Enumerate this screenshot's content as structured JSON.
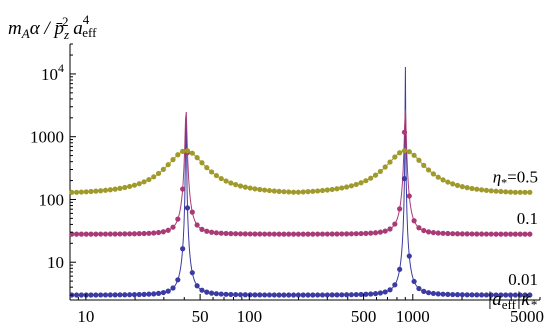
{
  "chart_data": {
    "type": "scatter",
    "title": "",
    "ylabel": "m_A α / p̄_z² a_eff⁴",
    "xlabel": "|a_eff| κ_*",
    "x_scale": "log",
    "y_scale": "log",
    "xlim": [
      8,
      6000
    ],
    "ylim": [
      2.5,
      30000
    ],
    "x_ticks": [
      {
        "value": 10,
        "label": "10"
      },
      {
        "value": 50,
        "label": "50"
      },
      {
        "value": 100,
        "label": "100"
      },
      {
        "value": 500,
        "label": "500"
      },
      {
        "value": 1000,
        "label": "1000"
      },
      {
        "value": 5000,
        "label": "5000"
      }
    ],
    "y_ticks": [
      {
        "value": 10,
        "label": "10"
      },
      {
        "value": 100,
        "label": "100"
      },
      {
        "value": 1000,
        "label": "1000"
      },
      {
        "value": 10000,
        "label": "10^4"
      }
    ],
    "grid": false,
    "resonances": [
      41,
      900
    ],
    "series": [
      {
        "name": "η*=0.01",
        "label_prefix": "",
        "label_value": "0.01",
        "color": "#3b3ba3",
        "baseline": 3,
        "peak": 30000,
        "width": 0.001
      },
      {
        "name": "η*=0.1",
        "label_prefix": "",
        "label_value": "0.1",
        "color": "#a83a77",
        "baseline": 28,
        "peak": 2800,
        "width": 0.01
      },
      {
        "name": "η*=0.5",
        "label_prefix": "η*=",
        "label_value": "0.5",
        "color": "#a09a2c",
        "baseline": 130,
        "peak": 600,
        "width": 0.25
      }
    ]
  }
}
